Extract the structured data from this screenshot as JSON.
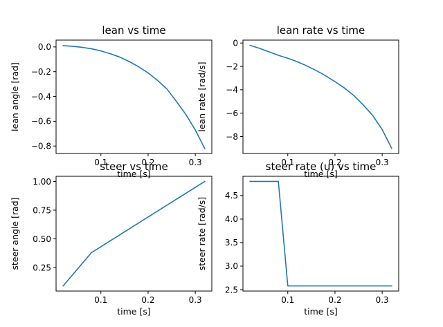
{
  "chart_data": [
    {
      "type": "line",
      "title": "lean vs time",
      "xlabel": "time [s]",
      "ylabel": "lean angle [rad]",
      "xlim": [
        0.005,
        0.335
      ],
      "ylim": [
        -0.86,
        0.055
      ],
      "xticks": [
        0.1,
        0.2,
        0.3
      ],
      "xtick_labels": [
        "0.1",
        "0.2",
        "0.3"
      ],
      "yticks": [
        0.0,
        -0.2,
        -0.4,
        -0.6,
        -0.8
      ],
      "ytick_labels": [
        "0.0",
        "−0.2",
        "−0.4",
        "−0.6",
        "−0.8"
      ],
      "series_color": "#1f77b4",
      "x": [
        0.02,
        0.04,
        0.06,
        0.08,
        0.1,
        0.12,
        0.14,
        0.16,
        0.18,
        0.2,
        0.22,
        0.24,
        0.26,
        0.28,
        0.3,
        0.32
      ],
      "y": [
        0.01,
        0.005,
        -0.003,
        -0.015,
        -0.032,
        -0.055,
        -0.082,
        -0.118,
        -0.16,
        -0.21,
        -0.27,
        -0.34,
        -0.44,
        -0.545,
        -0.67,
        -0.82
      ]
    },
    {
      "type": "line",
      "title": "lean rate vs time",
      "xlabel": "time [s]",
      "ylabel": "lean rate [rad/s]",
      "xlim": [
        0.005,
        0.335
      ],
      "ylim": [
        -9.45,
        0.25
      ],
      "xticks": [
        0.1,
        0.2,
        0.3
      ],
      "xtick_labels": [
        "0.1",
        "0.2",
        "0.3"
      ],
      "yticks": [
        0,
        -2,
        -4,
        -6,
        -8
      ],
      "ytick_labels": [
        "0",
        "−2",
        "−4",
        "−6",
        "−8"
      ],
      "series_color": "#1f77b4",
      "x": [
        0.02,
        0.04,
        0.06,
        0.08,
        0.1,
        0.12,
        0.14,
        0.16,
        0.18,
        0.2,
        0.22,
        0.24,
        0.26,
        0.28,
        0.3,
        0.32
      ],
      "y": [
        -0.2,
        -0.45,
        -0.75,
        -1.05,
        -1.3,
        -1.6,
        -1.95,
        -2.35,
        -2.8,
        -3.3,
        -3.85,
        -4.5,
        -5.3,
        -6.2,
        -7.4,
        -9.0
      ]
    },
    {
      "type": "line",
      "title": "steer vs time",
      "xlabel": "time [s]",
      "ylabel": "steer angle [rad]",
      "xlim": [
        0.005,
        0.335
      ],
      "ylim": [
        0.045,
        1.045
      ],
      "xticks": [
        0.1,
        0.2,
        0.3
      ],
      "xtick_labels": [
        "0.1",
        "0.2",
        "0.3"
      ],
      "yticks": [
        0.25,
        0.5,
        0.75,
        1.0
      ],
      "ytick_labels": [
        "0.25",
        "0.50",
        "0.75",
        "1.00"
      ],
      "series_color": "#1f77b4",
      "x": [
        0.02,
        0.08,
        0.32
      ],
      "y": [
        0.09,
        0.38,
        1.0
      ]
    },
    {
      "type": "line",
      "title": "steer rate (u) vs time",
      "xlabel": "time [s]",
      "ylabel": "steer rate [rad/s]",
      "xlim": [
        0.005,
        0.335
      ],
      "ylim": [
        2.47,
        4.91
      ],
      "xticks": [
        0.1,
        0.2,
        0.3
      ],
      "xtick_labels": [
        "0.1",
        "0.2",
        "0.3"
      ],
      "yticks": [
        2.5,
        3.0,
        3.5,
        4.0,
        4.5
      ],
      "ytick_labels": [
        "2.5",
        "3.0",
        "3.5",
        "4.0",
        "4.5"
      ],
      "series_color": "#1f77b4",
      "x": [
        0.02,
        0.08,
        0.1,
        0.32
      ],
      "y": [
        4.8,
        4.8,
        2.58,
        2.58
      ]
    }
  ]
}
